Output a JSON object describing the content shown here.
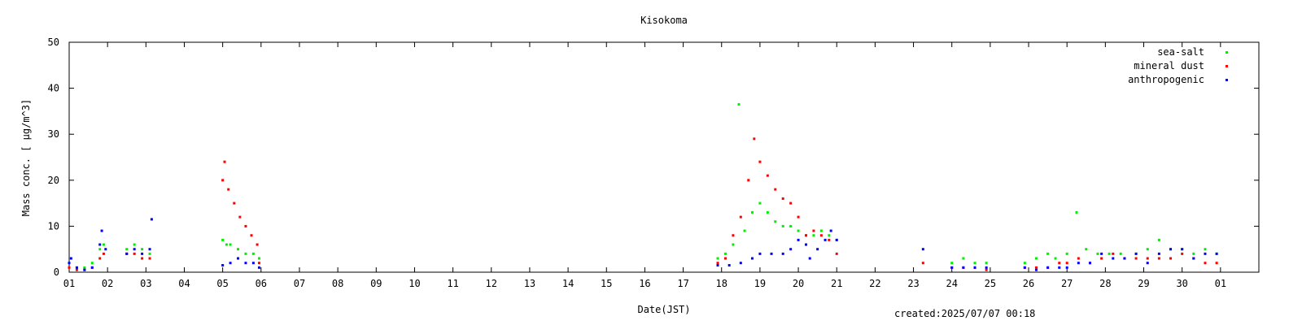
{
  "chart_data": {
    "type": "scatter",
    "title": "Kisokoma",
    "xlabel": "Date(JST)",
    "ylabel": "Mass conc. [ μg/m^3]",
    "xlim": [
      1,
      32
    ],
    "ylim": [
      0,
      50
    ],
    "yticks": [
      0,
      10,
      20,
      30,
      40,
      50
    ],
    "xtick_labels": [
      "01",
      "02",
      "03",
      "04",
      "05",
      "06",
      "07",
      "08",
      "09",
      "10",
      "11",
      "12",
      "13",
      "14",
      "15",
      "16",
      "17",
      "18",
      "19",
      "20",
      "21",
      "22",
      "23",
      "24",
      "25",
      "26",
      "27",
      "28",
      "29",
      "30",
      "01"
    ],
    "grid": false,
    "legend_position": "top-right",
    "created": "created:2025/07/07 00:18",
    "series": [
      {
        "name": "sea-salt",
        "color": "#00ee00",
        "points": [
          [
            1.0,
            2
          ],
          [
            1.2,
            1
          ],
          [
            1.4,
            1
          ],
          [
            1.6,
            2
          ],
          [
            1.8,
            5
          ],
          [
            1.9,
            6
          ],
          [
            2.5,
            5
          ],
          [
            2.7,
            6
          ],
          [
            2.9,
            5
          ],
          [
            3.1,
            4
          ],
          [
            5.0,
            7
          ],
          [
            5.1,
            6
          ],
          [
            5.2,
            6
          ],
          [
            5.4,
            5
          ],
          [
            5.6,
            4
          ],
          [
            5.8,
            4
          ],
          [
            5.95,
            3
          ],
          [
            17.9,
            3
          ],
          [
            18.1,
            4
          ],
          [
            18.3,
            6
          ],
          [
            18.45,
            36.5
          ],
          [
            18.6,
            9
          ],
          [
            18.8,
            13
          ],
          [
            19.0,
            15
          ],
          [
            19.2,
            13
          ],
          [
            19.4,
            11
          ],
          [
            19.6,
            10
          ],
          [
            19.8,
            10
          ],
          [
            20.0,
            9
          ],
          [
            20.2,
            8
          ],
          [
            20.4,
            8
          ],
          [
            20.6,
            9
          ],
          [
            20.8,
            8
          ],
          [
            21.0,
            7
          ],
          [
            24.0,
            2
          ],
          [
            24.3,
            3
          ],
          [
            24.6,
            2
          ],
          [
            24.9,
            2
          ],
          [
            25.9,
            2
          ],
          [
            26.2,
            3
          ],
          [
            26.5,
            4
          ],
          [
            26.7,
            3
          ],
          [
            27.0,
            4
          ],
          [
            27.25,
            13
          ],
          [
            27.5,
            5
          ],
          [
            27.8,
            4
          ],
          [
            28.1,
            4
          ],
          [
            28.4,
            4
          ],
          [
            28.8,
            4
          ],
          [
            29.1,
            5
          ],
          [
            29.4,
            7
          ],
          [
            29.7,
            5
          ],
          [
            30.0,
            5
          ],
          [
            30.3,
            4
          ],
          [
            30.6,
            5
          ],
          [
            30.9,
            4
          ]
        ]
      },
      {
        "name": "mineral dust",
        "color": "#ff0000",
        "points": [
          [
            1.0,
            1
          ],
          [
            1.2,
            0.5
          ],
          [
            1.4,
            0.5
          ],
          [
            1.6,
            1
          ],
          [
            1.8,
            3
          ],
          [
            1.9,
            4
          ],
          [
            2.5,
            4
          ],
          [
            2.7,
            4
          ],
          [
            2.9,
            3
          ],
          [
            3.1,
            3
          ],
          [
            5.0,
            20
          ],
          [
            5.05,
            24
          ],
          [
            5.15,
            18
          ],
          [
            5.3,
            15
          ],
          [
            5.45,
            12
          ],
          [
            5.6,
            10
          ],
          [
            5.75,
            8
          ],
          [
            5.9,
            6
          ],
          [
            5.95,
            2
          ],
          [
            17.9,
            2
          ],
          [
            18.1,
            3
          ],
          [
            18.3,
            8
          ],
          [
            18.5,
            12
          ],
          [
            18.7,
            20
          ],
          [
            18.85,
            29
          ],
          [
            19.0,
            24
          ],
          [
            19.2,
            21
          ],
          [
            19.4,
            18
          ],
          [
            19.6,
            16
          ],
          [
            19.8,
            15
          ],
          [
            20.0,
            12
          ],
          [
            20.2,
            8
          ],
          [
            20.4,
            9
          ],
          [
            20.6,
            8
          ],
          [
            20.8,
            7
          ],
          [
            21.0,
            4
          ],
          [
            23.25,
            2
          ],
          [
            24.0,
            1
          ],
          [
            24.3,
            1
          ],
          [
            24.6,
            1
          ],
          [
            24.9,
            0.5
          ],
          [
            25.9,
            1
          ],
          [
            26.2,
            1
          ],
          [
            26.5,
            1
          ],
          [
            26.8,
            2
          ],
          [
            27.0,
            2
          ],
          [
            27.3,
            3
          ],
          [
            27.6,
            2
          ],
          [
            27.9,
            3
          ],
          [
            28.2,
            4
          ],
          [
            28.5,
            3
          ],
          [
            28.8,
            3
          ],
          [
            29.1,
            3
          ],
          [
            29.4,
            3
          ],
          [
            29.7,
            3
          ],
          [
            30.0,
            4
          ],
          [
            30.3,
            3
          ],
          [
            30.6,
            2
          ],
          [
            30.9,
            2
          ]
        ]
      },
      {
        "name": "anthropogenic",
        "color": "#0000ff",
        "points": [
          [
            1.0,
            2
          ],
          [
            1.05,
            3
          ],
          [
            1.2,
            1
          ],
          [
            1.4,
            0.5
          ],
          [
            1.6,
            1
          ],
          [
            1.8,
            6
          ],
          [
            1.85,
            9
          ],
          [
            1.95,
            5
          ],
          [
            2.5,
            4
          ],
          [
            2.7,
            5
          ],
          [
            2.9,
            4
          ],
          [
            3.1,
            5
          ],
          [
            3.15,
            11.5
          ],
          [
            5.0,
            1.5
          ],
          [
            5.2,
            2
          ],
          [
            5.4,
            3
          ],
          [
            5.6,
            2
          ],
          [
            5.8,
            2
          ],
          [
            5.95,
            1
          ],
          [
            17.9,
            1.5
          ],
          [
            18.2,
            1.5
          ],
          [
            18.5,
            2
          ],
          [
            18.8,
            3
          ],
          [
            19.0,
            4
          ],
          [
            19.3,
            4
          ],
          [
            19.6,
            4
          ],
          [
            19.8,
            5
          ],
          [
            20.0,
            7
          ],
          [
            20.2,
            6
          ],
          [
            20.3,
            3
          ],
          [
            20.5,
            5
          ],
          [
            20.7,
            7
          ],
          [
            20.85,
            9
          ],
          [
            21.0,
            7
          ],
          [
            23.25,
            5
          ],
          [
            24.0,
            1
          ],
          [
            24.3,
            1
          ],
          [
            24.6,
            1
          ],
          [
            24.9,
            1
          ],
          [
            25.9,
            1
          ],
          [
            26.2,
            0.5
          ],
          [
            26.5,
            1
          ],
          [
            26.8,
            1
          ],
          [
            27.0,
            1
          ],
          [
            27.3,
            2
          ],
          [
            27.6,
            2
          ],
          [
            27.9,
            4
          ],
          [
            28.2,
            3
          ],
          [
            28.5,
            3
          ],
          [
            28.8,
            4
          ],
          [
            29.1,
            2
          ],
          [
            29.4,
            4
          ],
          [
            29.7,
            5
          ],
          [
            30.0,
            5
          ],
          [
            30.3,
            3
          ],
          [
            30.6,
            4
          ],
          [
            30.9,
            4
          ]
        ]
      }
    ]
  }
}
